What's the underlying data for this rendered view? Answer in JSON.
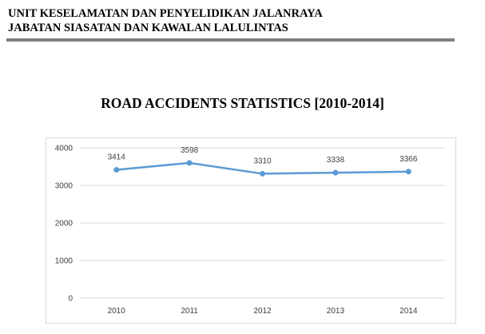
{
  "header": {
    "line1": "UNIT KESELAMATAN DAN PENYELIDIKAN JALANRAYA",
    "line2": "JABATAN SIASATAN DAN KAWALAN LALULINTAS"
  },
  "colors": {
    "series": "#5b9bd5",
    "gridline": "#d9d9d9",
    "rule": "#808080"
  },
  "chart_data": {
    "type": "line",
    "title": "ROAD ACCIDENTS STATISTICS [2010-2014]",
    "xlabel": "",
    "ylabel": "",
    "categories": [
      "2010",
      "2011",
      "2012",
      "2013",
      "2014"
    ],
    "values": [
      3414,
      3598,
      3310,
      3338,
      3366
    ],
    "ylim": [
      0,
      4000
    ],
    "yticks": [
      0,
      1000,
      2000,
      3000,
      4000
    ],
    "grid": true,
    "legend": "none",
    "data_labels": true
  }
}
